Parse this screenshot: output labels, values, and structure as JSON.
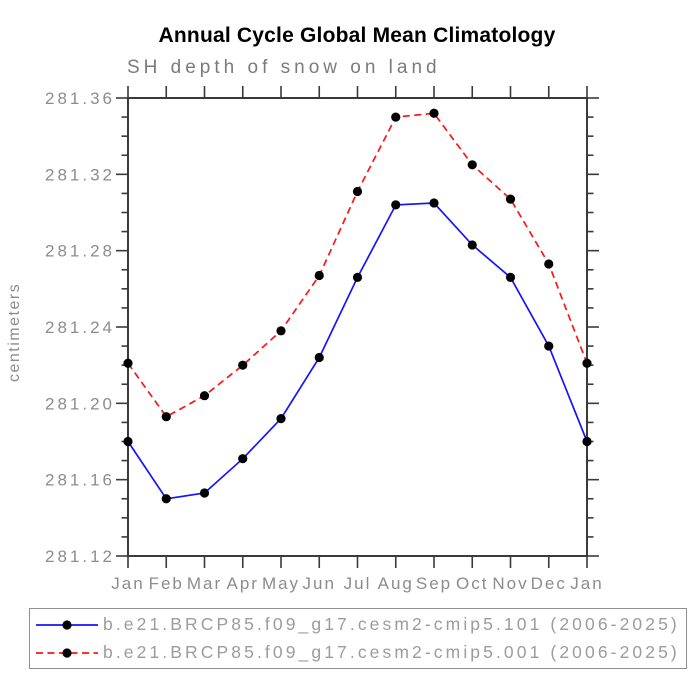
{
  "header": {
    "title": "Annual Cycle Global Mean Climatology",
    "subtitle": "SH depth of snow on land"
  },
  "chart_data": {
    "type": "line",
    "title": "Annual Cycle Global Mean Climatology",
    "subtitle": "SH depth of snow on land",
    "xlabel": "",
    "ylabel": "centimeters",
    "categories": [
      "Jan",
      "Feb",
      "Mar",
      "Apr",
      "May",
      "Jun",
      "Jul",
      "Aug",
      "Sep",
      "Oct",
      "Nov",
      "Dec",
      "Jan"
    ],
    "ylim": [
      281.12,
      281.36
    ],
    "ytick_labels": [
      "281.12",
      "281.16",
      "281.20",
      "281.24",
      "281.28",
      "281.32",
      "281.36"
    ],
    "yminor_step": 0.01,
    "yminor_per_major": 4,
    "grid": false,
    "legend_position": "bottom",
    "axis_color": "#3a3a3a",
    "tick_label_color": "#8c8c8c",
    "marker": "filled-circle",
    "marker_color": "#000000",
    "series": [
      {
        "name": "b.e21.BRCP85.f09_g17.cesm2-cmip5.101 (2006-2025)",
        "color": "#1414ff",
        "line_style": "solid",
        "values": [
          281.18,
          281.15,
          281.153,
          281.171,
          281.192,
          281.224,
          281.266,
          281.304,
          281.305,
          281.283,
          281.266,
          281.23,
          281.18
        ]
      },
      {
        "name": "b.e21.BRCP85.f09_g17.cesm2-cmip5.001 (2006-2025)",
        "color": "#ff1414",
        "line_style": "dashed",
        "values": [
          281.221,
          281.193,
          281.204,
          281.22,
          281.238,
          281.267,
          281.311,
          281.35,
          281.352,
          281.325,
          281.307,
          281.273,
          281.221
        ]
      }
    ]
  }
}
